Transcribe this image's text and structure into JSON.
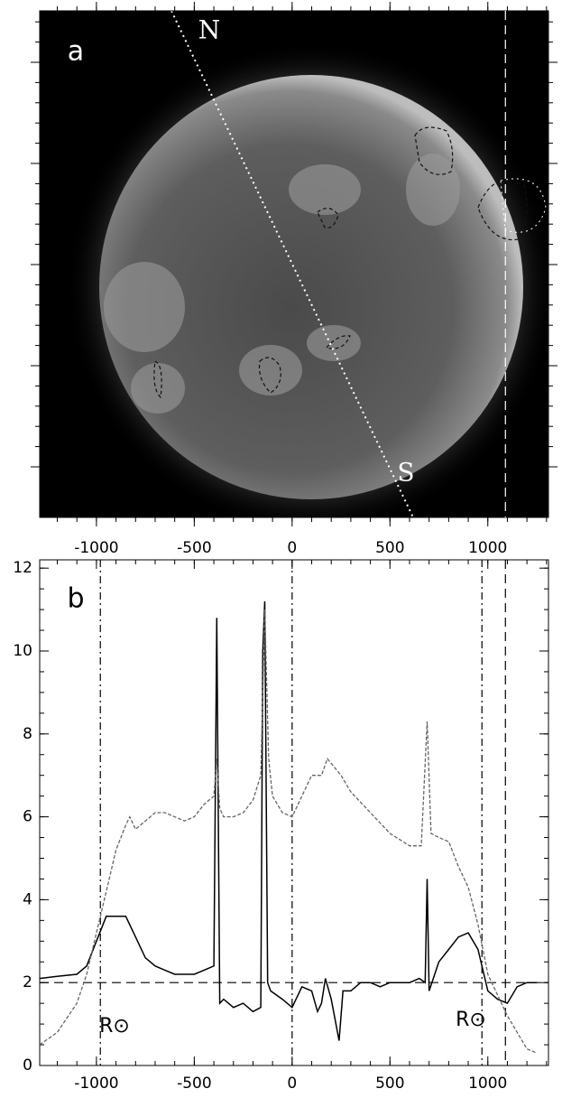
{
  "chart_data": [
    {
      "type": "image",
      "panel_label": "a",
      "north_label": "N",
      "south_label": "S",
      "xlim": [
        -1290,
        1310
      ],
      "xticks": [
        -1000,
        -500,
        0,
        500,
        1000
      ],
      "vlines": [
        {
          "value": 1090,
          "style": "dashed",
          "color": "#ffffff"
        }
      ]
    },
    {
      "type": "line",
      "panel_label": "b",
      "limb_label": "R⊙",
      "xlim": [
        -1290,
        1310
      ],
      "xticks": [
        -1000,
        -500,
        0,
        500,
        1000
      ],
      "ylim": [
        0,
        12.2
      ],
      "yticks": [
        0,
        2,
        4,
        6,
        8,
        10,
        12
      ],
      "hlines": [
        {
          "value": 2,
          "style": "dashed",
          "color": "#000000"
        }
      ],
      "vlines": [
        {
          "value": -980,
          "style": "dashdot",
          "color": "#000000"
        },
        {
          "value": 0,
          "style": "dashdot",
          "color": "#000000"
        },
        {
          "value": 970,
          "style": "dashdot",
          "color": "#000000"
        },
        {
          "value": 1090,
          "style": "dashed",
          "color": "#000000"
        }
      ],
      "series": [
        {
          "color": "#000000",
          "style": "solid",
          "x": [
            -1290,
            -1200,
            -1100,
            -1050,
            -1000,
            -950,
            -900,
            -850,
            -800,
            -750,
            -700,
            -650,
            -600,
            -550,
            -500,
            -450,
            -400,
            -385,
            -370,
            -350,
            -300,
            -250,
            -200,
            -160,
            -150,
            -140,
            -125,
            -110,
            -50,
            0,
            50,
            100,
            130,
            150,
            170,
            200,
            240,
            260,
            300,
            350,
            400,
            450,
            500,
            550,
            600,
            650,
            680,
            690,
            700,
            750,
            800,
            850,
            900,
            950,
            1000,
            1050,
            1100,
            1150,
            1200,
            1250
          ],
          "values": [
            2.1,
            2.15,
            2.2,
            2.4,
            3.0,
            3.6,
            3.6,
            3.6,
            3.1,
            2.6,
            2.4,
            2.3,
            2.2,
            2.2,
            2.2,
            2.3,
            2.4,
            10.8,
            1.5,
            1.6,
            1.4,
            1.5,
            1.3,
            1.4,
            10.0,
            11.2,
            2.0,
            1.8,
            1.6,
            1.4,
            1.9,
            1.8,
            1.3,
            1.5,
            2.1,
            1.6,
            0.6,
            1.8,
            1.8,
            2.0,
            2.0,
            1.9,
            2.0,
            2.0,
            2.0,
            2.1,
            2.0,
            4.5,
            1.8,
            2.5,
            2.8,
            3.1,
            3.2,
            2.8,
            1.8,
            1.6,
            1.5,
            1.9,
            2.0,
            2.0
          ]
        },
        {
          "color": "#666666",
          "style": "dashed",
          "x": [
            -1290,
            -1200,
            -1100,
            -1050,
            -1000,
            -950,
            -900,
            -850,
            -830,
            -800,
            -750,
            -700,
            -650,
            -600,
            -550,
            -500,
            -450,
            -400,
            -385,
            -370,
            -350,
            -300,
            -250,
            -200,
            -160,
            -140,
            -120,
            -100,
            -50,
            0,
            50,
            100,
            150,
            180,
            250,
            300,
            400,
            500,
            600,
            660,
            690,
            710,
            750,
            800,
            850,
            900,
            950,
            1000,
            1050,
            1100,
            1150,
            1200,
            1250
          ],
          "values": [
            0.5,
            0.8,
            1.5,
            2.2,
            3.2,
            4.2,
            5.2,
            5.8,
            6.0,
            5.7,
            5.9,
            6.1,
            6.1,
            6.0,
            5.9,
            6.0,
            6.3,
            6.5,
            7.4,
            6.2,
            6.0,
            6.0,
            6.1,
            6.4,
            7.0,
            11.0,
            7.4,
            6.5,
            6.1,
            6.0,
            6.5,
            7.0,
            7.0,
            7.4,
            7.0,
            6.6,
            6.1,
            5.6,
            5.3,
            5.3,
            8.3,
            5.6,
            5.5,
            5.4,
            4.8,
            4.3,
            3.4,
            2.2,
            1.7,
            1.2,
            0.8,
            0.4,
            0.3
          ]
        }
      ]
    }
  ]
}
